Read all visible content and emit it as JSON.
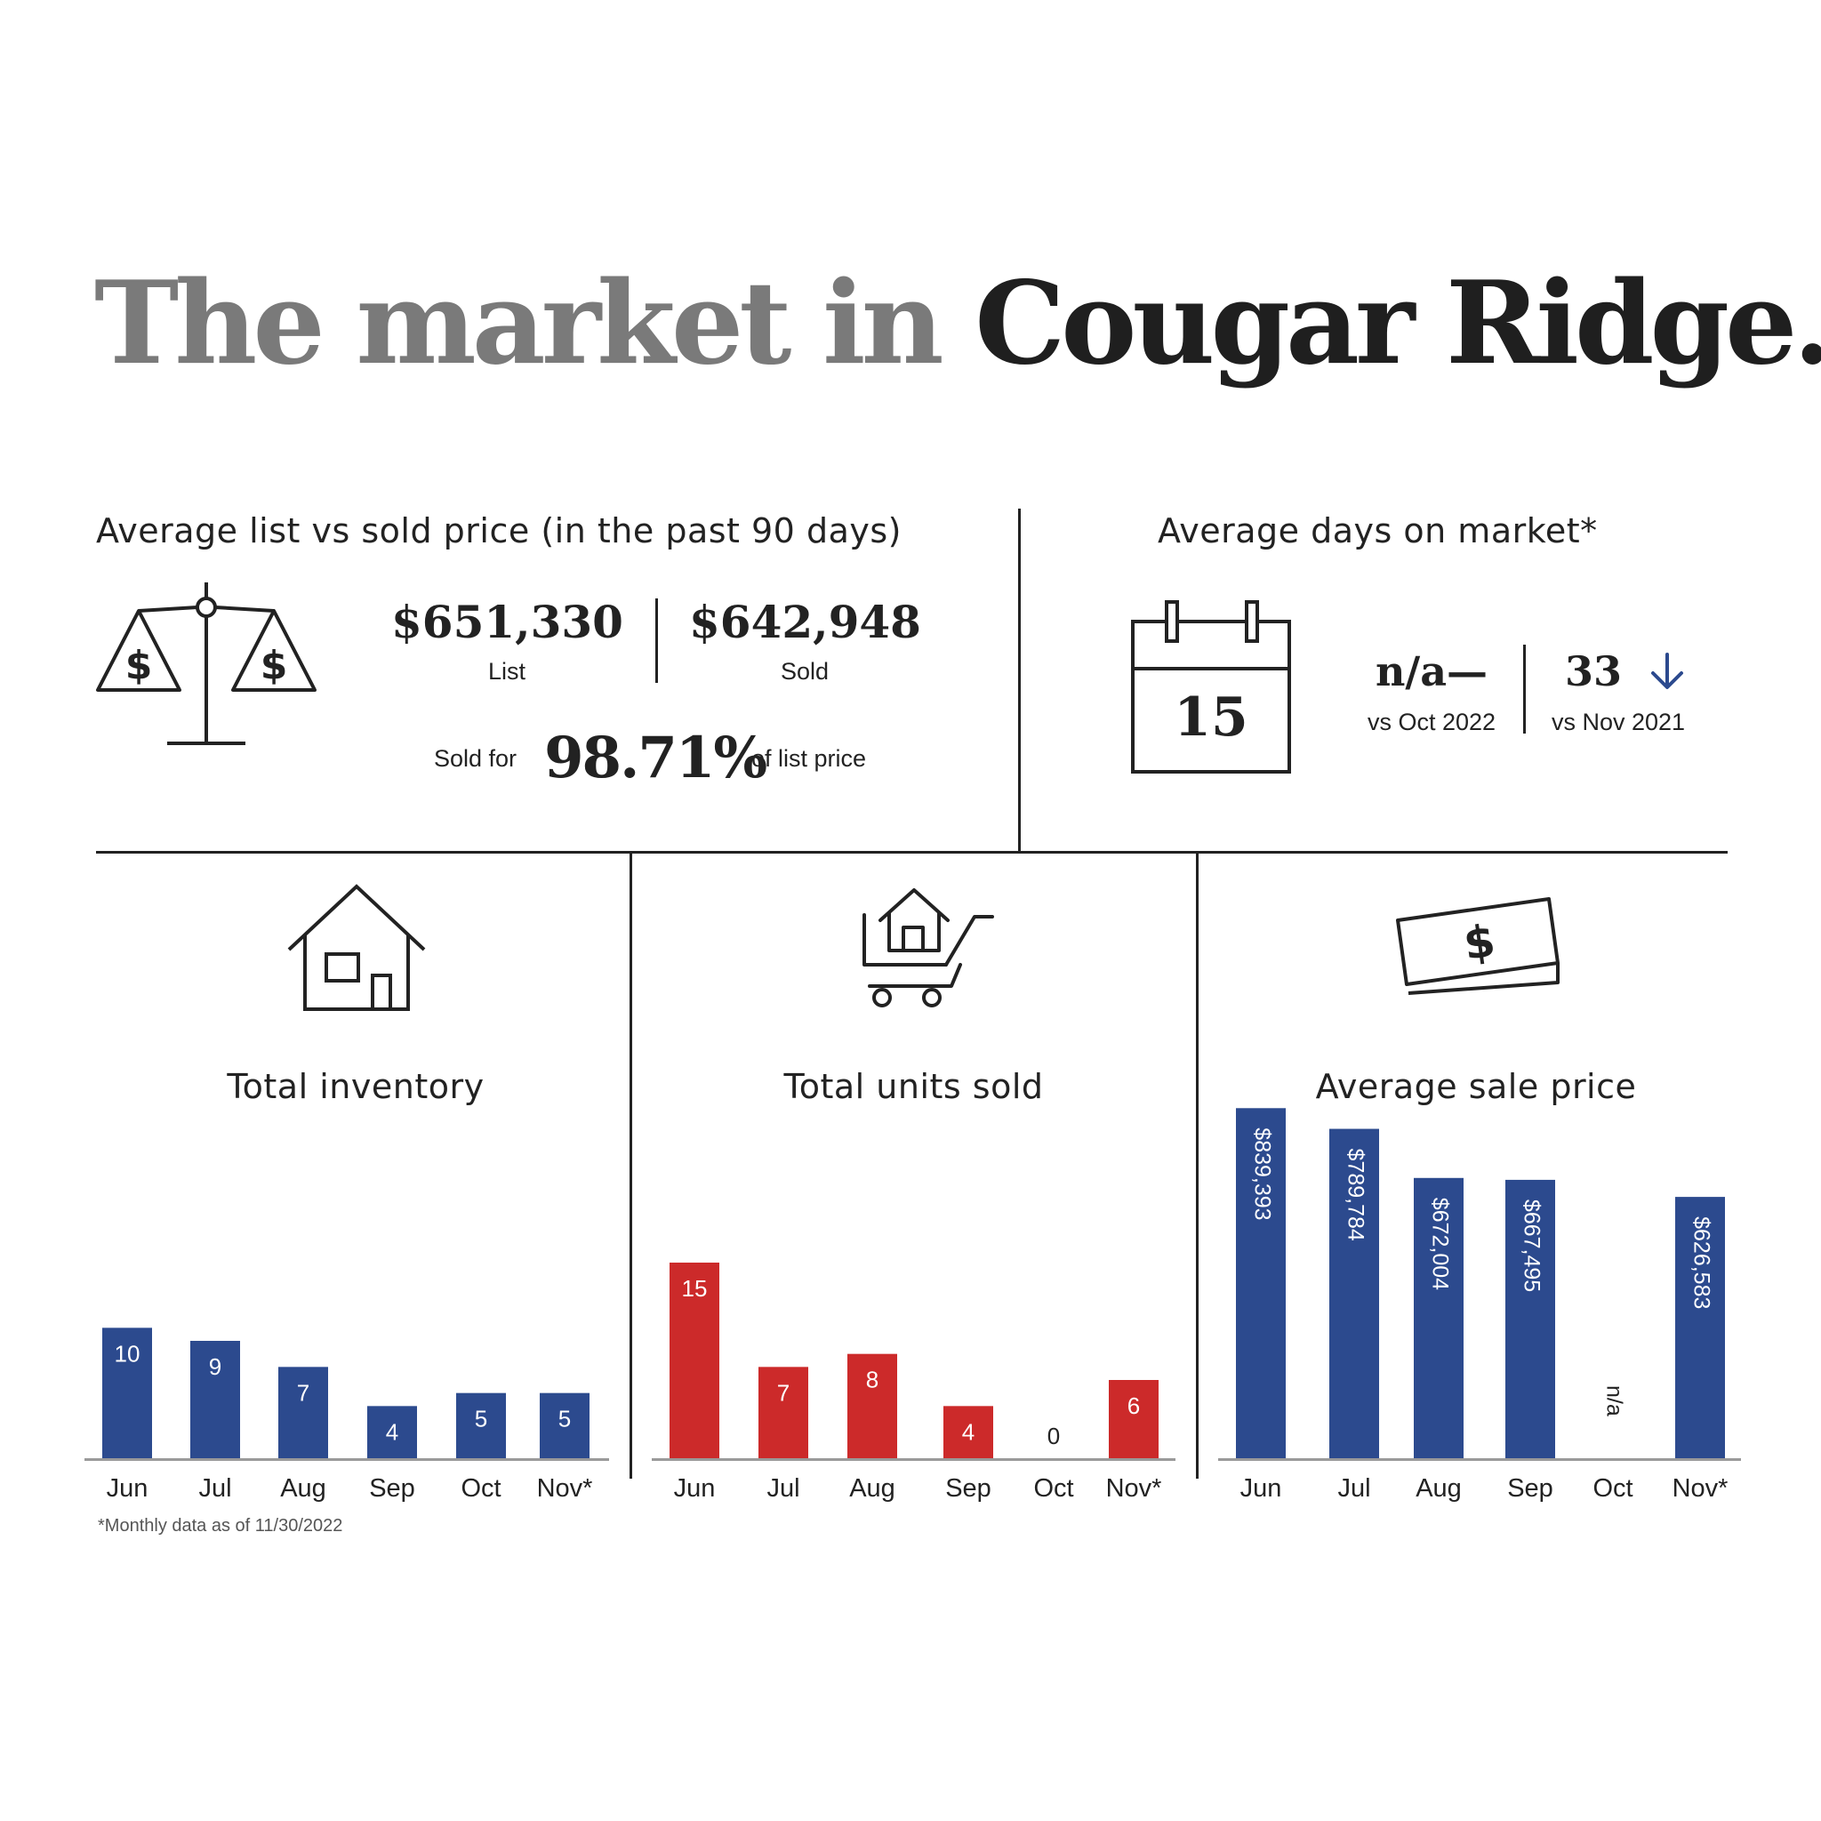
{
  "title": {
    "part1": "The market in",
    "part2": "Cougar Ridge."
  },
  "list_vs_sold": {
    "heading": "Average list vs sold price (in the past 90 days)",
    "list_value": "$651,330",
    "list_label": "List",
    "sold_value": "$642,948",
    "sold_label": "Sold",
    "sold_for_label": "Sold for",
    "percent": "98.71%",
    "of_list_label": "of list price"
  },
  "days_on_market": {
    "heading": "Average days on market*",
    "calendar_value": "15",
    "cmp1_value": "n/a—",
    "cmp1_label": "vs Oct 2022",
    "cmp2_value": "33",
    "cmp2_label": "vs Nov 2021",
    "arrow_icon": "arrow-down-icon",
    "arrow_color": "#2c4a8e"
  },
  "footnote": "*Monthly data as of 11/30/2022",
  "colors": {
    "blue": "#2c4a8e",
    "red": "#cc2a2a",
    "axis": "#9a9a9a"
  },
  "chart_data": [
    {
      "type": "bar",
      "title": "Total inventory",
      "categories": [
        "Jun",
        "Jul",
        "Aug",
        "Sep",
        "Oct",
        "Nov*"
      ],
      "values": [
        10,
        9,
        7,
        4,
        5,
        5
      ],
      "labels": [
        "10",
        "9",
        "7",
        "4",
        "5",
        "5"
      ],
      "color": "#2c4a8e",
      "ylim": [
        0,
        30
      ]
    },
    {
      "type": "bar",
      "title": "Total units sold",
      "categories": [
        "Jun",
        "Jul",
        "Aug",
        "Sep",
        "Oct",
        "Nov*"
      ],
      "values": [
        15,
        7,
        8,
        4,
        0,
        6
      ],
      "labels": [
        "15",
        "7",
        "8",
        "4",
        "0",
        "6"
      ],
      "color": "#cc2a2a",
      "ylim": [
        0,
        30
      ]
    },
    {
      "type": "bar",
      "title": "Average sale price",
      "categories": [
        "Jun",
        "Jul",
        "Aug",
        "Sep",
        "Oct",
        "Nov*"
      ],
      "values": [
        839393,
        789784,
        672004,
        667495,
        null,
        626583
      ],
      "labels": [
        "$839,393",
        "$789,784",
        "$672,004",
        "$667,495",
        "n/a",
        "$626,583"
      ],
      "color": "#2c4a8e",
      "ylim": [
        0,
        840000
      ]
    }
  ]
}
